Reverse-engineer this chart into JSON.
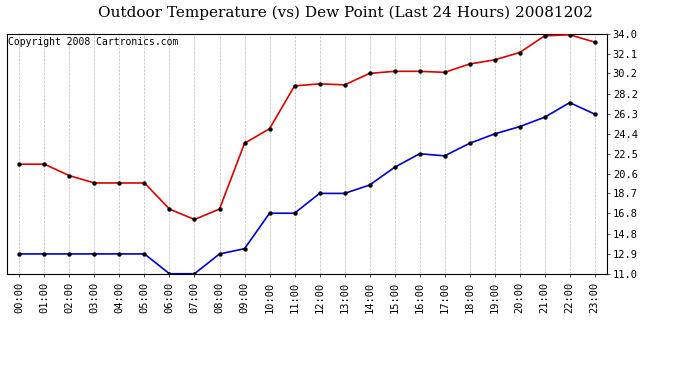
{
  "title": "Outdoor Temperature (vs) Dew Point (Last 24 Hours) 20081202",
  "copyright_text": "Copyright 2008 Cartronics.com",
  "x_labels": [
    "00:00",
    "01:00",
    "02:00",
    "03:00",
    "04:00",
    "05:00",
    "06:00",
    "07:00",
    "08:00",
    "09:00",
    "10:00",
    "11:00",
    "12:00",
    "13:00",
    "14:00",
    "15:00",
    "16:00",
    "17:00",
    "18:00",
    "19:00",
    "20:00",
    "21:00",
    "22:00",
    "23:00"
  ],
  "temp_data": [
    21.5,
    21.5,
    20.4,
    19.7,
    19.7,
    19.7,
    17.2,
    16.2,
    17.2,
    23.5,
    24.9,
    29.0,
    29.2,
    29.1,
    30.2,
    30.4,
    30.4,
    30.3,
    31.1,
    31.5,
    32.2,
    33.8,
    33.9,
    33.2
  ],
  "dew_data": [
    12.9,
    12.9,
    12.9,
    12.9,
    12.9,
    12.9,
    11.0,
    11.0,
    12.9,
    13.4,
    16.8,
    16.8,
    18.7,
    18.7,
    19.5,
    21.2,
    22.5,
    22.3,
    23.5,
    24.4,
    25.1,
    26.0,
    27.4,
    26.3
  ],
  "temp_color": "#dd0000",
  "dew_color": "#0000cc",
  "bg_color": "#ffffff",
  "grid_color": "#bbbbbb",
  "ylim": [
    11.0,
    34.0
  ],
  "y_ticks_right": [
    11.0,
    12.9,
    14.8,
    16.8,
    18.7,
    20.6,
    22.5,
    24.4,
    26.3,
    28.2,
    30.2,
    32.1,
    34.0
  ],
  "title_fontsize": 11,
  "copyright_fontsize": 7,
  "tick_fontsize": 7.5
}
